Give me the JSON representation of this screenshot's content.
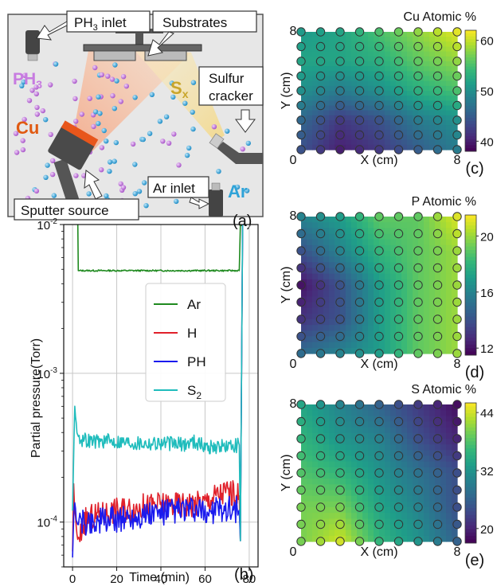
{
  "schematic": {
    "labels": {
      "ph3_inlet": "PH",
      "ph3_inlet_sub": "3",
      "ph3_inlet_tail": " inlet",
      "substrates": "Substrates",
      "ph3_gas": "PH",
      "ph3_gas_sub": "3",
      "sx": "S",
      "sx_sub": "x",
      "sulfur_cracker_1": "Sulfur",
      "sulfur_cracker_2": "cracker",
      "cu": "Cu",
      "ar_inlet": "Ar inlet",
      "ar": "Ar",
      "sputter_source": "Sputter source"
    },
    "panel_label": "(a)",
    "colors": {
      "chamber": "#e6e6e6",
      "cu_plume": "#f7c9a8",
      "s_plume": "#f5e2a5",
      "ph3_dot": "#c77be0",
      "ar_dot": "#2fa3d8",
      "cu_text": "#e05a12",
      "sx_text": "#c9a52a",
      "ar_text": "#2fa3d8",
      "ph3_text": "#c77be0"
    }
  },
  "chart_data": [
    {
      "type": "line",
      "panel_label": "(b)",
      "xlabel": "Time (min)",
      "ylabel": "Partial pressure(Torr)",
      "xlim": [
        -4,
        84
      ],
      "ylim": [
        5e-05,
        0.01
      ],
      "yscale": "log",
      "x_ticks": [
        0,
        20,
        40,
        60,
        80
      ],
      "y_ticks": [
        {
          "value": 0.01,
          "base": "10",
          "exp": "-2"
        },
        {
          "value": 0.001,
          "base": "10",
          "exp": "-3"
        },
        {
          "value": 0.0001,
          "base": "10",
          "exp": "-4"
        }
      ],
      "grid": true,
      "legend": "center-right",
      "series": [
        {
          "name": "Ar",
          "color": "#1f8a1f",
          "x": [
            3,
            10,
            20,
            30,
            40,
            50,
            60,
            70,
            75.5
          ],
          "y": [
            0.0049,
            0.0049,
            0.0049,
            0.0049,
            0.0049,
            0.0049,
            0.0049,
            0.0049,
            0.0049
          ]
        },
        {
          "name": "H",
          "color": "#e0202a",
          "x": [
            0,
            0.5,
            1,
            2,
            3,
            5,
            10,
            20,
            30,
            40,
            50,
            60,
            65,
            70,
            75.5
          ],
          "y": [
            6e-05,
            0.00018,
            0.00012,
            8e-05,
            7.5e-05,
            0.0001,
            0.00011,
            0.00012,
            0.000125,
            0.00013,
            0.00013,
            0.000135,
            0.00015,
            0.00016,
            0.00015
          ]
        },
        {
          "name": "PH",
          "color": "#1a1aee",
          "x": [
            0,
            0.5,
            1,
            2,
            4,
            10,
            20,
            30,
            40,
            50,
            60,
            70,
            75.5
          ],
          "y": [
            6e-05,
            0.00011,
            0.00013,
            0.0001,
            0.0001,
            0.0001,
            0.000105,
            0.00011,
            0.000115,
            0.00012,
            0.000115,
            0.000125,
            0.00012
          ]
        },
        {
          "name": "S",
          "name_sub": "2",
          "color": "#1fbcbc",
          "x": [
            0,
            1,
            2,
            4,
            10,
            20,
            30,
            40,
            50,
            55,
            60,
            70,
            75.5
          ],
          "y": [
            0.00012,
            0.0006,
            0.0004,
            0.00036,
            0.00035,
            0.00035,
            0.00034,
            0.00034,
            0.00033,
            0.00035,
            0.00032,
            0.00032,
            0.00033
          ]
        }
      ]
    },
    {
      "type": "heatmap",
      "panel_label": "(c)",
      "title": "Cu Atomic %",
      "xlabel": "X (cm)",
      "ylabel": "Y (cm)",
      "xlim": [
        0,
        8
      ],
      "ylim": [
        0,
        8
      ],
      "x_ticks": [
        "0",
        "8"
      ],
      "y_ticks": [
        "0",
        "8"
      ],
      "colorbar": {
        "range": [
          38,
          62
        ],
        "ticks": [
          40,
          50,
          60
        ]
      },
      "x": [
        0,
        2,
        4,
        6,
        8
      ],
      "y": [
        0,
        2,
        4,
        6,
        8
      ],
      "values": [
        [
          44,
          40,
          42,
          45,
          48
        ],
        [
          46,
          42,
          44,
          48,
          50
        ],
        [
          50,
          48,
          50,
          53,
          55
        ],
        [
          52,
          52,
          53,
          56,
          58
        ],
        [
          51,
          52,
          55,
          58,
          61
        ]
      ],
      "points_x": [
        0,
        1,
        2,
        3,
        4,
        5,
        6,
        7,
        8
      ],
      "points_y": [
        0,
        1,
        2,
        3,
        4,
        5,
        6,
        7,
        8
      ]
    },
    {
      "type": "heatmap",
      "panel_label": "(d)",
      "title": "P Atomic %",
      "xlabel": "X (cm)",
      "ylabel": "Y (cm)",
      "xlim": [
        0,
        8
      ],
      "ylim": [
        0,
        8
      ],
      "x_ticks": [
        "0",
        "8"
      ],
      "y_ticks": [
        "0",
        "8"
      ],
      "colorbar": {
        "range": [
          11.5,
          21.5
        ],
        "ticks": [
          12,
          16,
          20
        ]
      },
      "x": [
        0,
        2,
        4,
        6,
        8
      ],
      "y": [
        0,
        2,
        4,
        6,
        8
      ],
      "values": [
        [
          15,
          16,
          17,
          19,
          20
        ],
        [
          13,
          14,
          17,
          19,
          20
        ],
        [
          12,
          14,
          17,
          19,
          20
        ],
        [
          14,
          16,
          18,
          19,
          20
        ],
        [
          16,
          17,
          19,
          19,
          21
        ]
      ],
      "points_x": [
        0,
        1,
        2,
        3,
        4,
        5,
        6,
        7,
        8
      ],
      "points_y": [
        0,
        1,
        2,
        3,
        4,
        5,
        6,
        7,
        8
      ]
    },
    {
      "type": "heatmap",
      "panel_label": "(e)",
      "title": "S Atomic %",
      "xlabel": "X (cm)",
      "ylabel": "Y (cm)",
      "xlim": [
        0,
        8
      ],
      "ylim": [
        0,
        8
      ],
      "x_ticks": [
        "0",
        "8"
      ],
      "y_ticks": [
        "0",
        "8"
      ],
      "colorbar": {
        "range": [
          17,
          46
        ],
        "ticks": [
          20,
          32,
          44
        ]
      },
      "x": [
        0,
        2,
        4,
        6,
        8
      ],
      "y": [
        0,
        2,
        4,
        6,
        8
      ],
      "values": [
        [
          40,
          44,
          36,
          32,
          26
        ],
        [
          40,
          40,
          34,
          30,
          24
        ],
        [
          38,
          36,
          32,
          28,
          24
        ],
        [
          36,
          32,
          30,
          24,
          20
        ],
        [
          34,
          30,
          26,
          22,
          18
        ]
      ],
      "points_x": [
        0,
        1,
        2,
        3,
        4,
        5,
        6,
        7,
        8
      ],
      "points_y": [
        0,
        1,
        2,
        3,
        4,
        5,
        6,
        7,
        8
      ]
    }
  ]
}
